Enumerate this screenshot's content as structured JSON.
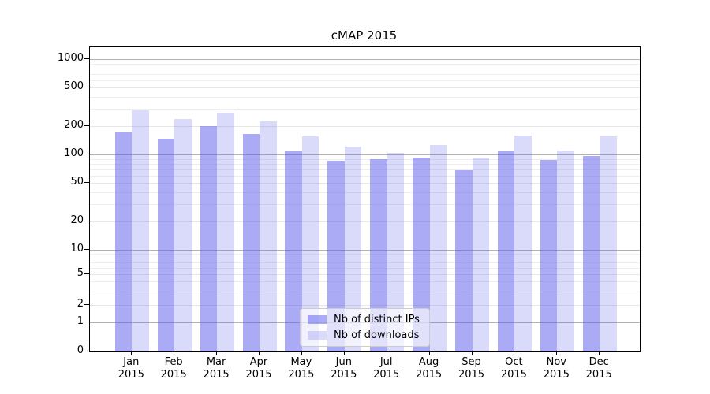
{
  "title": "cMAP 2015",
  "chart_data": {
    "type": "bar",
    "title": "cMAP 2015",
    "yscale": "log-with-zero",
    "grid": true,
    "legend_position": "lower center",
    "yticks": [
      1000,
      500,
      200,
      100,
      50,
      20,
      10,
      5,
      2,
      1,
      0
    ],
    "categories": [
      "Jan 2015",
      "Feb 2015",
      "Mar 2015",
      "Apr 2015",
      "May 2015",
      "Jun 2015",
      "Jul 2015",
      "Aug 2015",
      "Sep 2015",
      "Oct 2015",
      "Nov 2015",
      "Dec 2015"
    ],
    "series": [
      {
        "name": "Nb of distinct IPs",
        "color": "#aaaaf5",
        "css_color": "rgba(86,86,235,0.5)",
        "values": [
          170,
          146,
          198,
          165,
          108,
          86,
          90,
          92,
          68,
          108,
          88,
          96
        ]
      },
      {
        "name": "Nb of downloads",
        "color": "#dadaf9",
        "css_color": "rgba(86,86,235,0.22)",
        "values": [
          290,
          235,
          272,
          224,
          155,
          121,
          104,
          125,
          92,
          157,
          109,
          155
        ]
      }
    ],
    "ylim": [
      0,
      1330
    ]
  }
}
